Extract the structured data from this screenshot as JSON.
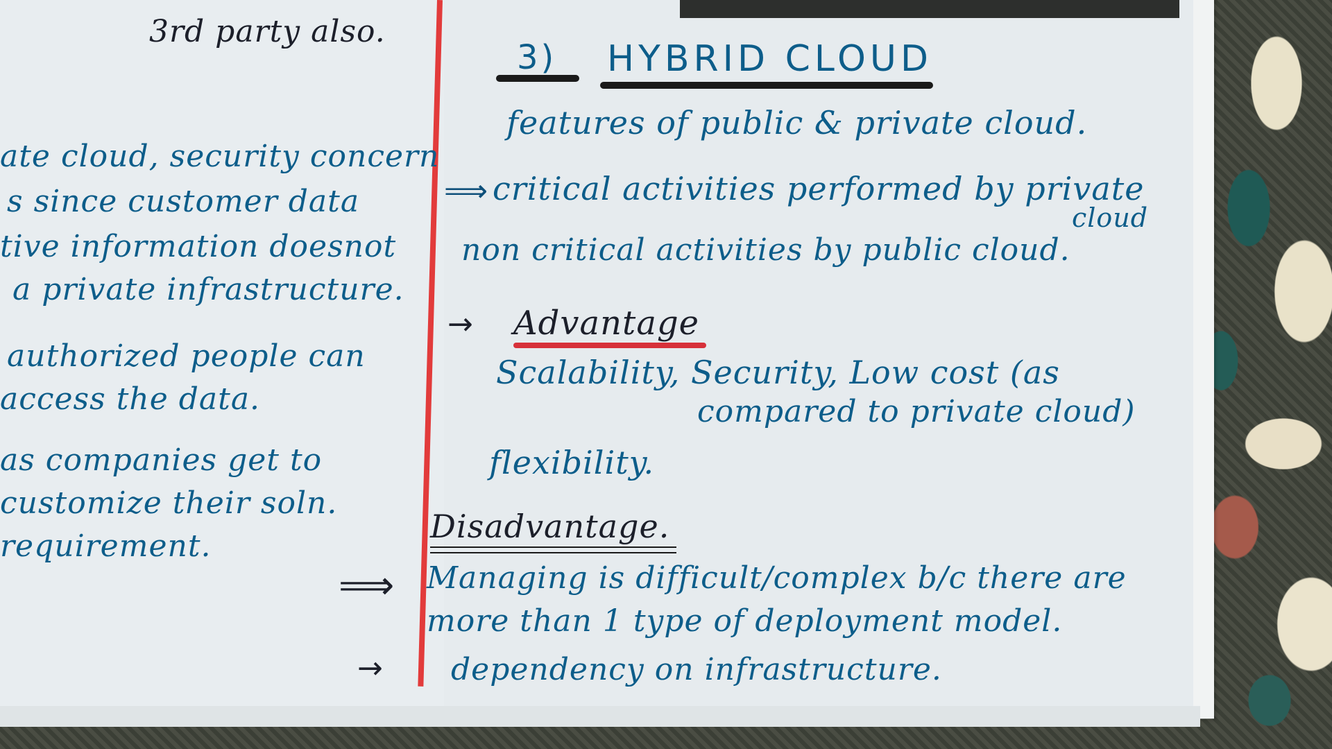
{
  "left_page": {
    "line1": "3rd party also.",
    "line2": "ate cloud, security concern",
    "line3": "s since customer data",
    "line4": "tive information doesnot",
    "line5": "a private infrastructure.",
    "line6": "authorized people can",
    "line7": "access the data.",
    "line8": "as companies get to",
    "line9": "customize their soln.",
    "line10": "requirement."
  },
  "right_page": {
    "heading_number": "3)",
    "heading_title": "HYBRID CLOUD",
    "features": "features of public & private cloud.",
    "critical": "critical activities performed by private",
    "critical_cont": "cloud",
    "non_critical": "non critical activities by public cloud.",
    "advantage_heading": "Advantage",
    "advantage_line1": "Scalability, Security, Low cost (as",
    "advantage_line2": "compared to private cloud)",
    "advantage_line3": "flexibility.",
    "disadvantage_heading": "Disadvantage.",
    "disadvantage_line1": "Managing is difficult/complex b/c there are",
    "disadvantage_line2": "more than 1 type of deployment model.",
    "disadvantage_line3": "dependency on infrastructure."
  },
  "icons": {
    "arrow": "→",
    "double_arrow": "⟹"
  },
  "colors": {
    "ink_blue": "#0d5d8a",
    "ink_dark": "#1c1f2a",
    "margin_red": "#e23b3b",
    "paper": "#e6ebee"
  }
}
